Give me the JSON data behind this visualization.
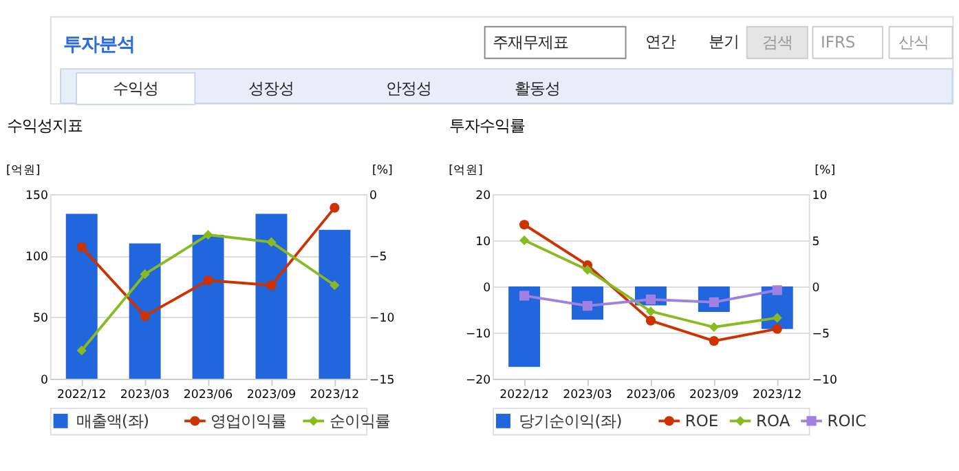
{
  "chart_data": [
    {
      "type": "other",
      "title": "투자분석",
      "annotations": [
        "주재무제표",
        "연간",
        "분기",
        "검색",
        "IFRS",
        "산식",
        "수익성",
        "성장성",
        "안정성",
        "활동성"
      ]
    },
    {
      "type": "bar",
      "title": "수익성지표",
      "ylabel": "[억원]",
      "y2label": "[%]",
      "categories": [
        "2022/12",
        "2023/03",
        "2023/06",
        "2023/09",
        "2023/12"
      ],
      "ylim": [
        0,
        150
      ],
      "yticks": [
        0,
        50,
        100,
        150
      ],
      "y2lim": [
        -15,
        0
      ],
      "y2ticks": [
        -15,
        -10,
        -5,
        0
      ],
      "grid": "y",
      "legend": "bottom",
      "series": [
        {
          "name": "매출액(좌)",
          "color": "#2266dd",
          "values": [
            134,
            110,
            117,
            134,
            121
          ]
        },
        {
          "name": "영업이익률",
          "type": "line",
          "axis": "y2",
          "marker": "circle",
          "color": "#cc3300",
          "values": [
            -4.3,
            -9.9,
            -7.0,
            -7.4,
            -1.1
          ]
        },
        {
          "name": "순이익률",
          "type": "line",
          "axis": "y2",
          "marker": "diamond",
          "color": "#88bb22",
          "values": [
            -12.7,
            -6.5,
            -3.3,
            -3.9,
            -7.4
          ]
        }
      ]
    },
    {
      "type": "bar",
      "title": "투자수익률",
      "ylabel": "[억원]",
      "y2label": "[%]",
      "categories": [
        "2022/12",
        "2023/03",
        "2023/06",
        "2023/09",
        "2023/12"
      ],
      "ylim": [
        -20,
        20
      ],
      "yticks": [
        -20,
        -10,
        0,
        10,
        20
      ],
      "y2lim": [
        -10,
        10
      ],
      "y2ticks": [
        -10,
        -5,
        0,
        5,
        10
      ],
      "grid": "y",
      "legend": "bottom",
      "series": [
        {
          "name": "당기순이익(좌)",
          "color": "#2266dd",
          "values": [
            -17.4,
            -7.2,
            -4.1,
            -5.5,
            -9.2
          ]
        },
        {
          "name": "ROE",
          "type": "line",
          "axis": "y2",
          "marker": "circle",
          "color": "#cc3300",
          "values": [
            6.7,
            2.3,
            -3.7,
            -5.9,
            -4.6
          ]
        },
        {
          "name": "ROA",
          "type": "line",
          "axis": "y2",
          "marker": "diamond",
          "color": "#88bb22",
          "values": [
            5.0,
            1.8,
            -2.7,
            -4.4,
            -3.4
          ]
        },
        {
          "name": "ROIC",
          "type": "line",
          "axis": "y2",
          "marker": "square",
          "color": "#a080e0",
          "values": [
            -1.0,
            -2.1,
            -1.4,
            -1.7,
            -0.4
          ]
        }
      ]
    }
  ]
}
